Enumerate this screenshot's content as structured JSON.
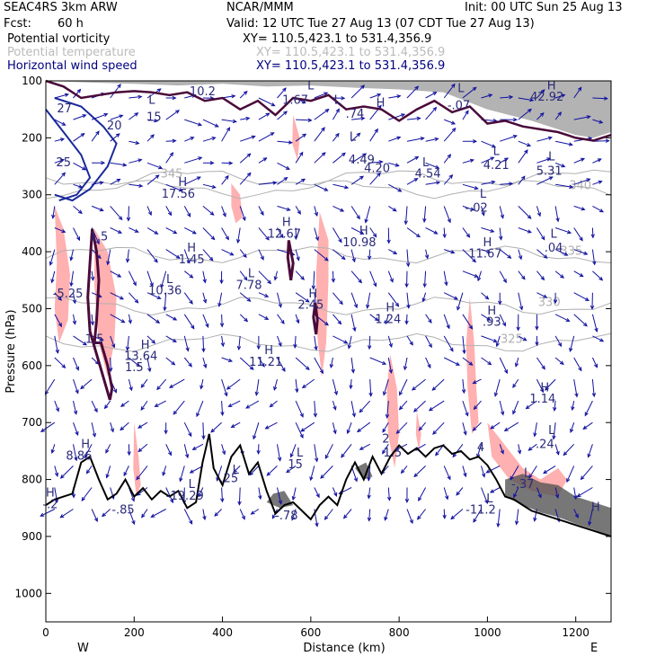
{
  "header": {
    "model": "SEAC4RS  3km ARW",
    "org": "NCAR/MMM",
    "init": "Init: 00 UTC Sun 25 Aug 13",
    "fcst_label": "Fcst:",
    "fcst_value": "60 h",
    "valid": "Valid: 12 UTC Tue 27 Aug 13 (07 CDT Tue 27 Aug 13)"
  },
  "fields": [
    {
      "name": "Potential vorticity",
      "xy": "XY= 110.5,423.1 to 531.4,356.9",
      "color": "#000000",
      "xy_color": "#000000"
    },
    {
      "name": "Potential temperature",
      "xy": "XY= 110.5,423.1 to 531.4,356.9",
      "color": "#bbbbbb",
      "xy_color": "#bbbbbb"
    },
    {
      "name": "Horizontal wind speed",
      "xy": "XY= 110.5,423.1 to 531.4,356.9",
      "color": "#000080",
      "xy_color": "#000080"
    }
  ],
  "chart_data": {
    "type": "cross-section",
    "xlabel": "Distance (km)",
    "ylabel": "Pressure (hPa)",
    "xlim": [
      0,
      1280
    ],
    "ylim": [
      1050,
      100
    ],
    "x_ticks": [
      0,
      200,
      400,
      600,
      800,
      1000,
      1200
    ],
    "y_ticks": [
      100,
      200,
      300,
      400,
      500,
      600,
      700,
      800,
      900,
      1000
    ],
    "x_end_labels": {
      "left": "W",
      "right": "E"
    },
    "colors": {
      "theta": "#b0b0b0",
      "wind_label": "#2a2a7a",
      "wind_arrow": "#1010a0",
      "pv_contour": "#4a0a3a",
      "terrain": "#000000",
      "shading": "#ffb0b0"
    },
    "theta_contours": [
      {
        "label": "345",
        "x": 285,
        "p": 270
      },
      {
        "label": "340",
        "x": 1210,
        "p": 290
      },
      {
        "label": "335",
        "x": 1190,
        "p": 405
      },
      {
        "label": "330",
        "x": 1140,
        "p": 495
      },
      {
        "label": "325",
        "x": 1055,
        "p": 560
      }
    ],
    "wind_labels": [
      {
        "text": "10.2",
        "x": 355,
        "p": 125
      },
      {
        "text": "L",
        "x": 600,
        "p": 115
      },
      {
        "text": "1.67",
        "x": 565,
        "p": 140
      },
      {
        "text": "L",
        "x": 660,
        "p": 140
      },
      {
        "text": ".74",
        "x": 700,
        "p": 165
      },
      {
        "text": "H",
        "x": 758,
        "p": 145
      },
      {
        "text": "L",
        "x": 940,
        "p": 120
      },
      {
        "text": "-.07",
        "x": 935,
        "p": 150
      },
      {
        "text": "H",
        "x": 1145,
        "p": 115
      },
      {
        "text": "42.92",
        "x": 1135,
        "p": 135
      },
      {
        "text": "L",
        "x": 240,
        "p": 140
      },
      {
        "text": "15",
        "x": 245,
        "p": 170
      },
      {
        "text": "20",
        "x": 155,
        "p": 185
      },
      {
        "text": "25",
        "x": 40,
        "p": 250
      },
      {
        "text": "27",
        "x": 42,
        "p": 155
      },
      {
        "text": "L",
        "x": 695,
        "p": 205
      },
      {
        "text": "4.49",
        "x": 715,
        "p": 245
      },
      {
        "text": "4.20",
        "x": 750,
        "p": 260
      },
      {
        "text": "L",
        "x": 860,
        "p": 250
      },
      {
        "text": "4.54",
        "x": 865,
        "p": 270
      },
      {
        "text": "L",
        "x": 1020,
        "p": 230
      },
      {
        "text": "4.21",
        "x": 1020,
        "p": 255
      },
      {
        "text": "L",
        "x": 1145,
        "p": 240
      },
      {
        "text": "5.31",
        "x": 1140,
        "p": 265
      },
      {
        "text": "H",
        "x": 310,
        "p": 285
      },
      {
        "text": "17.56",
        "x": 300,
        "p": 305
      },
      {
        "text": "L",
        "x": 990,
        "p": 305
      },
      {
        "text": "-.02",
        "x": 975,
        "p": 330
      },
      {
        "text": "H",
        "x": 545,
        "p": 355
      },
      {
        "text": "12.67",
        "x": 540,
        "p": 375
      },
      {
        "text": "H",
        "x": 720,
        "p": 370
      },
      {
        "text": "10.98",
        "x": 710,
        "p": 390
      },
      {
        "text": "H",
        "x": 1000,
        "p": 390
      },
      {
        "text": "11.67",
        "x": 995,
        "p": 410
      },
      {
        "text": "L",
        "x": 1150,
        "p": 375
      },
      {
        "text": ".04",
        "x": 1150,
        "p": 400
      },
      {
        "text": "H",
        "x": 330,
        "p": 400
      },
      {
        "text": "1.45",
        "x": 330,
        "p": 420
      },
      {
        "text": "L",
        "x": 280,
        "p": 455
      },
      {
        "text": "10.36",
        "x": 270,
        "p": 475
      },
      {
        "text": "L",
        "x": 465,
        "p": 445
      },
      {
        "text": "7.78",
        "x": 460,
        "p": 465
      },
      {
        "text": "H",
        "x": 605,
        "p": 480
      },
      {
        "text": "2.45",
        "x": 600,
        "p": 500
      },
      {
        "text": "H",
        "x": 780,
        "p": 505
      },
      {
        "text": "1.24",
        "x": 775,
        "p": 525
      },
      {
        "text": "H",
        "x": 1010,
        "p": 510
      },
      {
        "text": ".93",
        "x": 1010,
        "p": 530
      },
      {
        "text": "-5.25",
        "x": 50,
        "p": 480
      },
      {
        "text": "1.5",
        "x": 120,
        "p": 380
      },
      {
        "text": "1.5",
        "x": 110,
        "p": 560
      },
      {
        "text": "1.5",
        "x": 200,
        "p": 610
      },
      {
        "text": "H",
        "x": 225,
        "p": 570
      },
      {
        "text": "13.64",
        "x": 215,
        "p": 590
      },
      {
        "text": "H",
        "x": 505,
        "p": 580
      },
      {
        "text": "11.21",
        "x": 498,
        "p": 600
      },
      {
        "text": "H",
        "x": 1130,
        "p": 645
      },
      {
        "text": "1.14",
        "x": 1125,
        "p": 665
      },
      {
        "text": "L",
        "x": 1145,
        "p": 720
      },
      {
        "text": "H",
        "x": 90,
        "p": 745
      },
      {
        "text": "8.86",
        "x": 75,
        "p": 765
      },
      {
        "text": "L",
        "x": 575,
        "p": 760
      },
      {
        "text": "15",
        "x": 565,
        "p": 780
      },
      {
        "text": "2",
        "x": 770,
        "p": 735
      },
      {
        "text": "1.5",
        "x": 785,
        "p": 760
      },
      {
        "text": "4",
        "x": 985,
        "p": 750
      },
      {
        "text": ".24",
        "x": 1130,
        "p": 745
      },
      {
        "text": "L",
        "x": 430,
        "p": 790
      },
      {
        "text": "-.25",
        "x": 410,
        "p": 805
      },
      {
        "text": "L",
        "x": 1090,
        "p": 795
      },
      {
        "text": "-.37",
        "x": 1080,
        "p": 815
      },
      {
        "text": "L",
        "x": 330,
        "p": 815
      },
      {
        "text": "-19.29",
        "x": 315,
        "p": 835
      },
      {
        "text": "H",
        "x": 10,
        "p": 830
      },
      {
        "text": "-.2",
        "x": 10,
        "p": 850
      },
      {
        "text": "-.85",
        "x": 175,
        "p": 860
      },
      {
        "text": "L",
        "x": 1005,
        "p": 840
      },
      {
        "text": "-11.2",
        "x": 985,
        "p": 860
      },
      {
        "text": "-.78",
        "x": 545,
        "p": 870
      },
      {
        "text": "H",
        "x": 1245,
        "p": 855
      }
    ],
    "terrain_profile": [
      [
        0,
        845
      ],
      [
        20,
        835
      ],
      [
        40,
        830
      ],
      [
        60,
        825
      ],
      [
        80,
        770
      ],
      [
        100,
        760
      ],
      [
        120,
        800
      ],
      [
        140,
        835
      ],
      [
        160,
        825
      ],
      [
        180,
        800
      ],
      [
        200,
        830
      ],
      [
        220,
        815
      ],
      [
        240,
        835
      ],
      [
        260,
        820
      ],
      [
        280,
        830
      ],
      [
        300,
        820
      ],
      [
        320,
        850
      ],
      [
        340,
        840
      ],
      [
        355,
        770
      ],
      [
        370,
        720
      ],
      [
        380,
        780
      ],
      [
        400,
        810
      ],
      [
        420,
        760
      ],
      [
        440,
        740
      ],
      [
        460,
        790
      ],
      [
        480,
        770
      ],
      [
        500,
        820
      ],
      [
        520,
        860
      ],
      [
        540,
        845
      ],
      [
        560,
        840
      ],
      [
        580,
        855
      ],
      [
        600,
        870
      ],
      [
        620,
        845
      ],
      [
        640,
        830
      ],
      [
        660,
        845
      ],
      [
        680,
        800
      ],
      [
        700,
        770
      ],
      [
        720,
        800
      ],
      [
        740,
        760
      ],
      [
        760,
        790
      ],
      [
        780,
        760
      ],
      [
        800,
        740
      ],
      [
        820,
        755
      ],
      [
        840,
        745
      ],
      [
        860,
        760
      ],
      [
        880,
        745
      ],
      [
        900,
        740
      ],
      [
        920,
        755
      ],
      [
        940,
        750
      ],
      [
        960,
        765
      ],
      [
        980,
        760
      ],
      [
        1000,
        775
      ],
      [
        1020,
        800
      ],
      [
        1040,
        830
      ],
      [
        1060,
        835
      ],
      [
        1080,
        845
      ],
      [
        1100,
        855
      ],
      [
        1120,
        860
      ],
      [
        1140,
        865
      ],
      [
        1160,
        870
      ],
      [
        1180,
        875
      ],
      [
        1200,
        880
      ],
      [
        1220,
        885
      ],
      [
        1240,
        890
      ],
      [
        1260,
        895
      ],
      [
        1280,
        900
      ]
    ],
    "tropopause_pv": [
      [
        0,
        100
      ],
      [
        40,
        110
      ],
      [
        80,
        130
      ],
      [
        120,
        125
      ],
      [
        160,
        120
      ],
      [
        200,
        118
      ],
      [
        240,
        120
      ],
      [
        280,
        125
      ],
      [
        320,
        120
      ],
      [
        360,
        135
      ],
      [
        400,
        130
      ],
      [
        440,
        150
      ],
      [
        480,
        135
      ],
      [
        520,
        160
      ],
      [
        560,
        130
      ],
      [
        600,
        135
      ],
      [
        640,
        125
      ],
      [
        680,
        150
      ],
      [
        720,
        145
      ],
      [
        760,
        150
      ],
      [
        800,
        170
      ],
      [
        840,
        150
      ],
      [
        880,
        135
      ],
      [
        920,
        155
      ],
      [
        960,
        145
      ],
      [
        1000,
        175
      ],
      [
        1040,
        170
      ],
      [
        1080,
        180
      ],
      [
        1120,
        185
      ],
      [
        1160,
        190
      ],
      [
        1200,
        200
      ],
      [
        1240,
        205
      ],
      [
        1280,
        195
      ]
    ],
    "pv_blob_left": [
      [
        105,
        360
      ],
      [
        115,
        400
      ],
      [
        120,
        450
      ],
      [
        115,
        520
      ],
      [
        110,
        560
      ],
      [
        125,
        560
      ],
      [
        140,
        600
      ],
      [
        150,
        640
      ],
      [
        145,
        660
      ],
      [
        130,
        620
      ],
      [
        115,
        580
      ],
      [
        100,
        540
      ],
      [
        95,
        480
      ],
      [
        100,
        420
      ],
      [
        105,
        360
      ]
    ],
    "pv_blob_mid": [
      [
        550,
        380
      ],
      [
        560,
        420
      ],
      [
        555,
        450
      ],
      [
        548,
        410
      ],
      [
        550,
        380
      ]
    ],
    "pv_blob_mid2": [
      [
        610,
        490
      ],
      [
        615,
        520
      ],
      [
        612,
        545
      ],
      [
        606,
        515
      ],
      [
        610,
        490
      ]
    ],
    "jet_contours": [
      [
        [
          20,
          130
        ],
        [
          80,
          145
        ],
        [
          130,
          180
        ],
        [
          160,
          210
        ],
        [
          140,
          250
        ],
        [
          100,
          290
        ],
        [
          60,
          310
        ],
        [
          20,
          300
        ]
      ],
      [
        [
          0,
          150
        ],
        [
          40,
          190
        ],
        [
          80,
          230
        ],
        [
          100,
          270
        ],
        [
          70,
          300
        ],
        [
          30,
          310
        ]
      ]
    ],
    "shading_regions": [
      [
        [
          20,
          320
        ],
        [
          40,
          360
        ],
        [
          55,
          440
        ],
        [
          50,
          520
        ],
        [
          30,
          560
        ],
        [
          20,
          500
        ],
        [
          25,
          420
        ]
      ],
      [
        [
          110,
          360
        ],
        [
          140,
          400
        ],
        [
          160,
          480
        ],
        [
          155,
          560
        ],
        [
          140,
          620
        ],
        [
          120,
          560
        ],
        [
          110,
          460
        ]
      ],
      [
        [
          420,
          280
        ],
        [
          440,
          300
        ],
        [
          445,
          340
        ],
        [
          430,
          350
        ],
        [
          420,
          320
        ]
      ],
      [
        [
          620,
          330
        ],
        [
          640,
          380
        ],
        [
          640,
          450
        ],
        [
          635,
          560
        ],
        [
          625,
          620
        ],
        [
          615,
          550
        ],
        [
          612,
          440
        ],
        [
          618,
          360
        ]
      ],
      [
        [
          560,
          160
        ],
        [
          575,
          200
        ],
        [
          570,
          240
        ],
        [
          558,
          210
        ]
      ],
      [
        [
          780,
          580
        ],
        [
          795,
          640
        ],
        [
          800,
          720
        ],
        [
          790,
          780
        ],
        [
          775,
          720
        ],
        [
          772,
          640
        ]
      ],
      [
        [
          960,
          480
        ],
        [
          970,
          560
        ],
        [
          975,
          640
        ],
        [
          980,
          700
        ],
        [
          965,
          720
        ],
        [
          955,
          640
        ],
        [
          952,
          560
        ]
      ],
      [
        [
          1000,
          700
        ],
        [
          1040,
          740
        ],
        [
          1080,
          780
        ],
        [
          1120,
          800
        ],
        [
          1160,
          780
        ],
        [
          1180,
          800
        ],
        [
          1160,
          830
        ],
        [
          1100,
          820
        ],
        [
          1050,
          800
        ],
        [
          1010,
          760
        ]
      ],
      [
        [
          200,
          700
        ],
        [
          210,
          760
        ],
        [
          215,
          810
        ],
        [
          205,
          830
        ],
        [
          198,
          780
        ]
      ],
      [
        [
          840,
          680
        ],
        [
          850,
          720
        ],
        [
          845,
          750
        ],
        [
          838,
          720
        ]
      ]
    ],
    "grey_bands_upper": [
      [
        [
          0,
          100
        ],
        [
          1280,
          100
        ],
        [
          1280,
          190
        ],
        [
          1240,
          200
        ],
        [
          1200,
          195
        ],
        [
          1100,
          170
        ],
        [
          1000,
          150
        ],
        [
          900,
          120
        ],
        [
          800,
          115
        ],
        [
          700,
          112
        ],
        [
          600,
          108
        ],
        [
          500,
          110
        ],
        [
          400,
          105
        ],
        [
          300,
          108
        ],
        [
          200,
          105
        ],
        [
          100,
          103
        ],
        [
          0,
          100
        ]
      ]
    ],
    "grey_bands_lower": [
      [
        [
          1040,
          830
        ],
        [
          1080,
          845
        ],
        [
          1120,
          858
        ],
        [
          1160,
          866
        ],
        [
          1200,
          878
        ],
        [
          1240,
          888
        ],
        [
          1280,
          900
        ],
        [
          1280,
          850
        ],
        [
          1240,
          840
        ],
        [
          1200,
          830
        ],
        [
          1160,
          810
        ],
        [
          1120,
          805
        ],
        [
          1080,
          790
        ],
        [
          1040,
          800
        ]
      ],
      [
        [
          500,
          840
        ],
        [
          530,
          850
        ],
        [
          560,
          845
        ],
        [
          540,
          820
        ],
        [
          515,
          825
        ]
      ],
      [
        [
          700,
          780
        ],
        [
          720,
          800
        ],
        [
          740,
          795
        ],
        [
          725,
          770
        ]
      ]
    ]
  }
}
